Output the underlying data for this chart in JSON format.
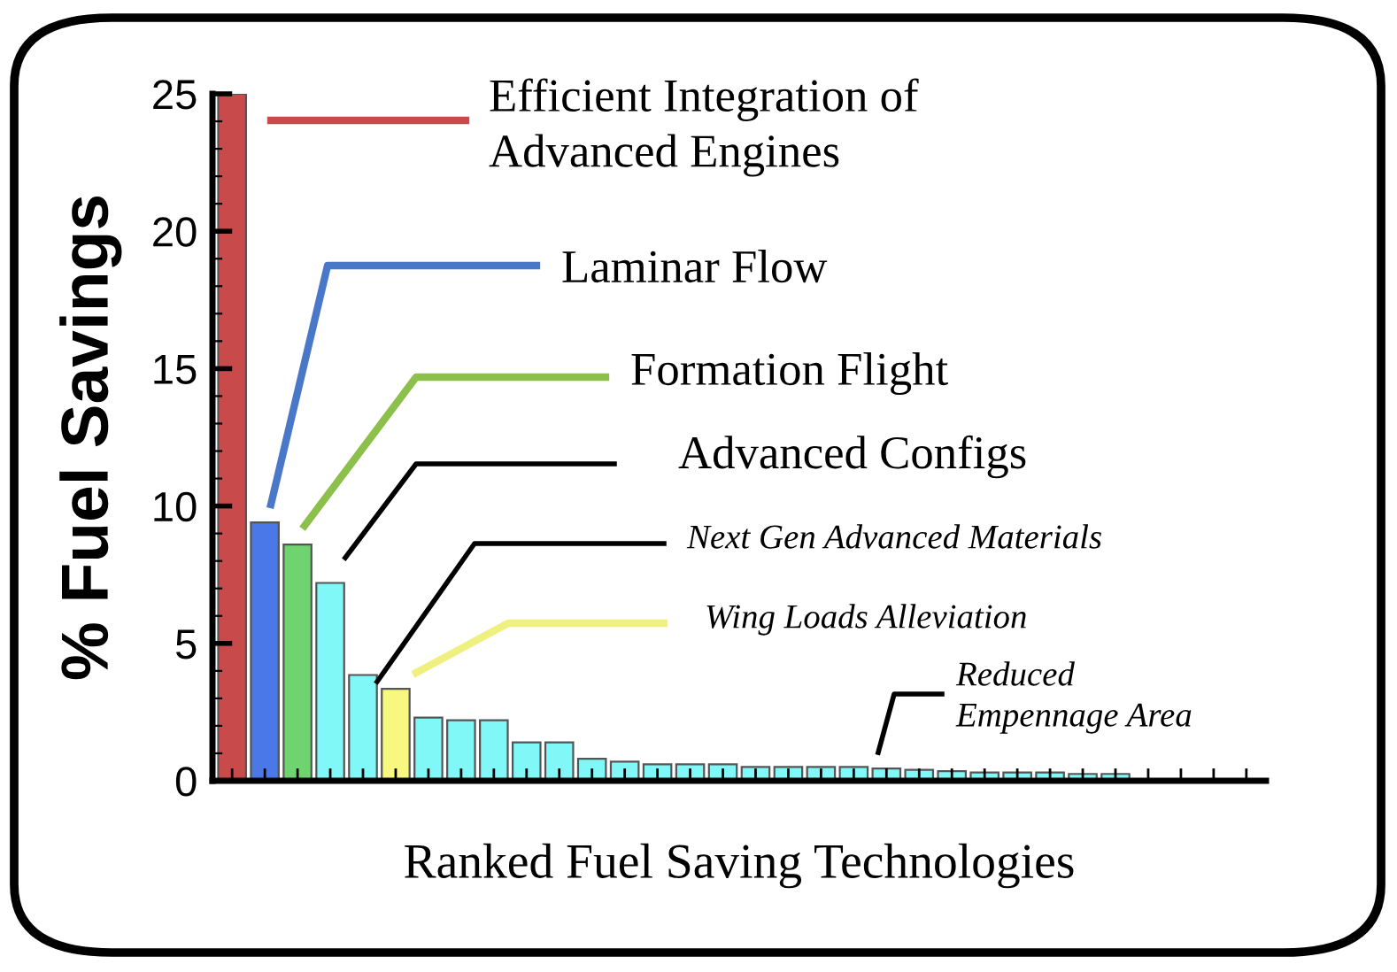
{
  "chart_data": {
    "type": "bar",
    "xlabel": "Ranked Fuel Saving Technologies",
    "ylabel": "% Fuel Savings",
    "categories": [
      null,
      null,
      null,
      null,
      null,
      null,
      null,
      null,
      null,
      null,
      null,
      null,
      null,
      null,
      null,
      null,
      null,
      null,
      null,
      null,
      null,
      null,
      null,
      null,
      null,
      null,
      null,
      null,
      null,
      null,
      null,
      null
    ],
    "values": [
      25,
      9.4,
      8.6,
      7.2,
      3.85,
      3.35,
      2.3,
      2.2,
      2.2,
      1.4,
      1.4,
      0.8,
      0.7,
      0.6,
      0.6,
      0.6,
      0.5,
      0.5,
      0.5,
      0.5,
      0.45,
      0.4,
      0.35,
      0.3,
      0.3,
      0.3,
      0.25,
      0.25,
      null,
      null,
      null,
      null
    ],
    "colors": [
      "#c84a4a",
      "#4a78e8",
      "#6fd46f",
      "#80f8f8",
      "#80f8f8",
      "#f8f880",
      "#80f8f8",
      "#80f8f8",
      "#80f8f8",
      "#80f8f8",
      "#80f8f8",
      "#80f8f8",
      "#80f8f8",
      "#80f8f8",
      "#80f8f8",
      "#80f8f8",
      "#80f8f8",
      "#80f8f8",
      "#80f8f8",
      "#80f8f8",
      "#80f8f8",
      "#80f8f8",
      "#80f8f8",
      "#80f8f8",
      "#80f8f8",
      "#80f8f8",
      "#80f8f8",
      "#80f8f8",
      "#80f8f8",
      "#80f8f8",
      "#80f8f8",
      "#80f8f8"
    ],
    "ylim": [
      0,
      25
    ],
    "yticks": [
      0,
      5,
      10,
      15,
      20,
      25
    ],
    "grid": false,
    "legend": false,
    "annotations": [
      "Efficient Integration of\nAdvanced Engines",
      "Laminar Flow",
      "Formation Flight",
      "Advanced Configs",
      "Next Gen Advanced Materials",
      "Wing Loads Alleviation",
      "Reduced\nEmpennage Area"
    ]
  }
}
